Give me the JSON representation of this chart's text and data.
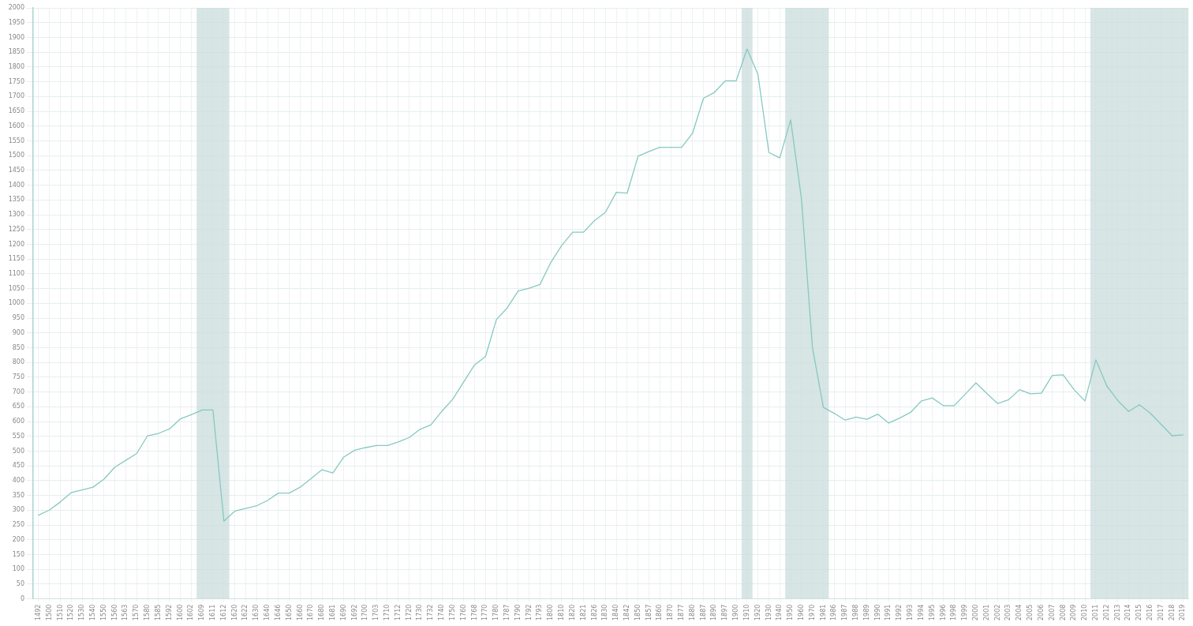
{
  "chart_data": {
    "type": "line",
    "categories": [
      "1492",
      "1500",
      "1510",
      "1520",
      "1530",
      "1540",
      "1550",
      "1560",
      "1563",
      "1570",
      "1580",
      "1585",
      "1592",
      "1600",
      "1602",
      "1609",
      "1611",
      "1612",
      "1620",
      "1622",
      "1630",
      "1640",
      "1646",
      "1650",
      "1660",
      "1670",
      "1680",
      "1681",
      "1690",
      "1692",
      "1700",
      "1703",
      "1710",
      "1712",
      "1720",
      "1730",
      "1732",
      "1740",
      "1750",
      "1760",
      "1768",
      "1770",
      "1780",
      "1787",
      "1790",
      "1792",
      "1793",
      "1800",
      "1810",
      "1820",
      "1821",
      "1826",
      "1830",
      "1840",
      "1842",
      "1850",
      "1857",
      "1860",
      "1870",
      "1877",
      "1880",
      "1887",
      "1890",
      "1897",
      "1900",
      "1910",
      "1920",
      "1930",
      "1940",
      "1950",
      "1960",
      "1970",
      "1981",
      "1986",
      "1987",
      "1988",
      "1989",
      "1990",
      "1991",
      "1992",
      "1993",
      "1994",
      "1995",
      "1996",
      "1998",
      "1999",
      "2000",
      "2001",
      "2002",
      "2003",
      "2004",
      "2005",
      "2006",
      "2007",
      "2008",
      "2009",
      "2010",
      "2011",
      "2012",
      "2013",
      "2014",
      "2015",
      "2016",
      "2017",
      "2018",
      "2019"
    ],
    "series": [
      {
        "color": "#86c9c0",
        "values": [
          283,
          301,
          328,
          360,
          369,
          378,
          405,
          446,
          469,
          492,
          552,
          560,
          575,
          609,
          623,
          639,
          639,
          263,
          297,
          306,
          315,
          333,
          358,
          358,
          378,
          407,
          437,
          426,
          480,
          503,
          512,
          519,
          519,
          531,
          546,
          574,
          589,
          635,
          676,
          734,
          792,
          820,
          945,
          985,
          1042,
          1051,
          1064,
          1139,
          1196,
          1241,
          1241,
          1280,
          1308,
          1376,
          1373,
          1498,
          1514,
          1528,
          1528,
          1528,
          1576,
          1694,
          1714,
          1753,
          1753,
          1861,
          1775,
          1511,
          1492,
          1621,
          1351,
          850,
          648,
          628,
          605,
          615,
          608,
          625,
          595,
          612,
          631,
          670,
          680,
          654,
          654,
          692,
          731,
          695,
          661,
          674,
          708,
          694,
          696,
          756,
          758,
          708,
          670,
          809,
          721,
          672,
          634,
          657,
          628,
          590,
          552,
          555
        ]
      }
    ],
    "ylim": [
      0,
      2000
    ],
    "yticks": [
      0,
      50,
      100,
      150,
      200,
      250,
      300,
      350,
      400,
      450,
      500,
      550,
      600,
      650,
      700,
      750,
      800,
      850,
      900,
      950,
      1000,
      1050,
      1100,
      1150,
      1200,
      1250,
      1300,
      1350,
      1400,
      1450,
      1500,
      1550,
      1600,
      1650,
      1700,
      1750,
      1800,
      1850,
      1900,
      1950,
      2000
    ],
    "bands": [
      {
        "axis": "x",
        "from": "1609",
        "to": "1612",
        "color": "#c9dcdc"
      },
      {
        "axis": "x",
        "from": "1910",
        "to": "1910",
        "color": "#c9dcdc"
      },
      {
        "axis": "x",
        "from": "1950",
        "to": "1981",
        "color": "#c9dcdc"
      },
      {
        "axis": "x",
        "from": "2011",
        "to": "2019",
        "color": "#c9dcdc"
      }
    ],
    "grid": true,
    "legend": false,
    "marker": "none",
    "line_style": "solid"
  }
}
